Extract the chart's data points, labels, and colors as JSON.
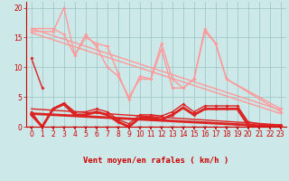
{
  "bg_color": "#cce8e8",
  "grid_color": "#a0c8c8",
  "xlabel": "Vent moyen/en rafales ( km/h )",
  "xlabel_color": "#cc0000",
  "tick_color": "#cc0000",
  "arrow_color": "#cc0000",
  "ylim": [
    0,
    21
  ],
  "xlim": [
    -0.5,
    23.5
  ],
  "yticks": [
    0,
    5,
    10,
    15,
    20
  ],
  "xticks": [
    0,
    1,
    2,
    3,
    4,
    5,
    6,
    7,
    8,
    9,
    10,
    11,
    12,
    13,
    14,
    15,
    16,
    17,
    18,
    19,
    20,
    21,
    22,
    23
  ],
  "series": [
    {
      "x": [
        0,
        1
      ],
      "y": [
        11.5,
        6.5
      ],
      "color": "#dd2222",
      "lw": 1.0,
      "marker": "D",
      "ms": 2.0,
      "zorder": 4
    },
    {
      "x": [
        0,
        1,
        2,
        3,
        4,
        5,
        6,
        7,
        8,
        9,
        10,
        11,
        12,
        13,
        14,
        15,
        16,
        17,
        18,
        19,
        20,
        21,
        22,
        23
      ],
      "y": [
        2.5,
        0,
        3,
        4,
        2.5,
        2.5,
        3,
        2.5,
        1.2,
        0.5,
        2,
        2,
        1.8,
        2.5,
        3.8,
        2.5,
        3.5,
        3.5,
        3.5,
        3.5,
        0.8,
        0.5,
        0.3,
        0.3
      ],
      "color": "#dd2222",
      "lw": 1.0,
      "marker": "D",
      "ms": 2.0,
      "zorder": 4
    },
    {
      "x": [
        0,
        1,
        2,
        3,
        4,
        5,
        6,
        7,
        8,
        9,
        10,
        11,
        12,
        13,
        14,
        15,
        16,
        17,
        18,
        19,
        20,
        21,
        22,
        23
      ],
      "y": [
        2,
        0,
        3,
        3.8,
        2,
        2,
        2.5,
        2,
        0.8,
        0,
        1.5,
        1.5,
        1.2,
        2,
        3.2,
        2,
        3,
        3,
        3,
        3,
        0.3,
        0,
        0,
        0
      ],
      "color": "#dd2222",
      "lw": 2.0,
      "marker": "D",
      "ms": 2.0,
      "zorder": 4
    },
    {
      "x": [
        0,
        2,
        3,
        4,
        5,
        6,
        7,
        8,
        9,
        10,
        11,
        12,
        13,
        14,
        15,
        16,
        17,
        18,
        23
      ],
      "y": [
        16.5,
        16.5,
        15.5,
        12,
        15,
        14,
        13.5,
        9,
        4.5,
        8.5,
        8,
        14,
        8,
        6.5,
        8,
        16.5,
        14,
        8,
        3
      ],
      "color": "#ff9999",
      "lw": 1.0,
      "marker": "D",
      "ms": 2.0,
      "zorder": 3
    },
    {
      "x": [
        0,
        2,
        3,
        4,
        5,
        6,
        7,
        8,
        9,
        10,
        11,
        12,
        13,
        14,
        15,
        16,
        17,
        18,
        23
      ],
      "y": [
        16.0,
        16.0,
        20,
        12,
        15.5,
        13.5,
        10,
        8.5,
        5.0,
        8,
        8,
        13,
        6.5,
        6.5,
        8,
        16,
        14,
        8,
        2.5
      ],
      "color": "#ff9999",
      "lw": 1.0,
      "marker": "D",
      "ms": 2.0,
      "zorder": 3
    }
  ],
  "regression_lines": [
    {
      "x0": 0,
      "y0": 16.5,
      "x1": 23,
      "y1": 2.8,
      "color": "#ff9999",
      "lw": 1.0
    },
    {
      "x0": 0,
      "y0": 15.8,
      "x1": 23,
      "y1": 2.2,
      "color": "#ff9999",
      "lw": 1.0
    },
    {
      "x0": 0,
      "y0": 3.0,
      "x1": 23,
      "y1": 0.3,
      "color": "#dd2222",
      "lw": 1.0
    },
    {
      "x0": 0,
      "y0": 2.2,
      "x1": 23,
      "y1": 0.0,
      "color": "#dd2222",
      "lw": 2.0
    }
  ]
}
